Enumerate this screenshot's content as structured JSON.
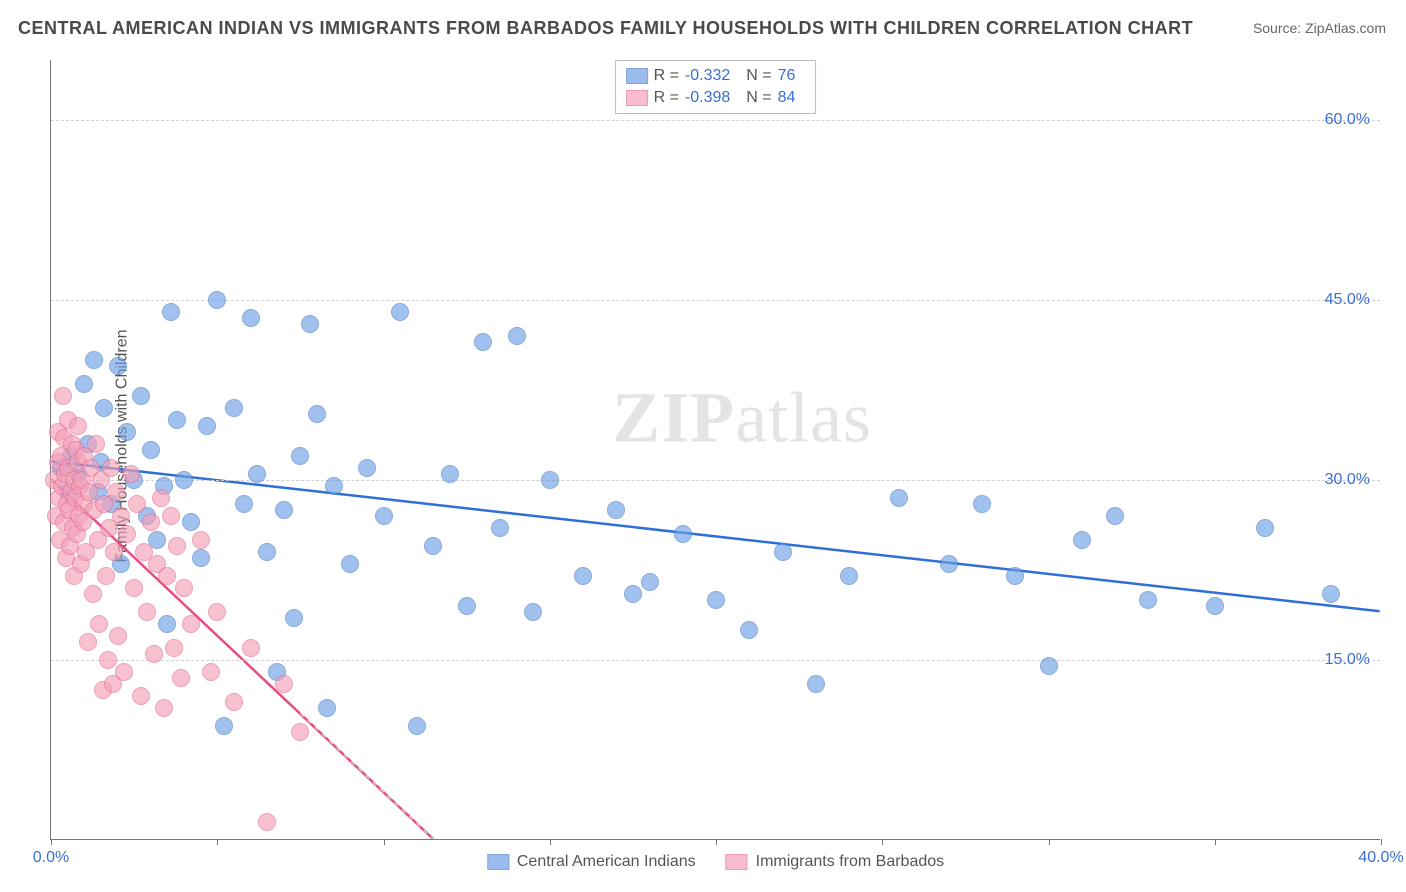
{
  "title": "CENTRAL AMERICAN INDIAN VS IMMIGRANTS FROM BARBADOS FAMILY HOUSEHOLDS WITH CHILDREN CORRELATION CHART",
  "source_label": "Source:",
  "source_site": "ZipAtlas.com",
  "ylabel": "Family Households with Children",
  "watermark": "ZIPatlas",
  "chart": {
    "type": "scatter",
    "xlim": [
      0,
      40
    ],
    "ylim": [
      0,
      65
    ],
    "x_ticks": [
      0,
      5,
      10,
      15,
      20,
      25,
      30,
      35,
      40
    ],
    "x_tick_labels": {
      "0": "0.0%",
      "40": "40.0%"
    },
    "y_gridlines": [
      15,
      30,
      45,
      60
    ],
    "y_tick_labels": {
      "15": "15.0%",
      "30": "30.0%",
      "45": "45.0%",
      "60": "60.0%"
    },
    "background_color": "#ffffff",
    "grid_color": "#d0d0d0",
    "axis_color": "#777777",
    "tick_label_color": "#3b6fd6",
    "point_radius": 9,
    "point_border_width": 1.5,
    "point_fill_opacity": 0.35,
    "trend_line_width": 2.5,
    "series": [
      {
        "name": "Central American Indians",
        "color": "#6fa0e6",
        "border_color": "#4d7fc9",
        "trend_color": "#2f6fd6",
        "R": "-0.332",
        "N": "76",
        "trend": {
          "x1": 0,
          "y1": 31.5,
          "x2": 40,
          "y2": 19.0
        },
        "points": [
          [
            0.3,
            31
          ],
          [
            0.5,
            29
          ],
          [
            0.6,
            32
          ],
          [
            0.8,
            30.5
          ],
          [
            1.0,
            38
          ],
          [
            1.1,
            33
          ],
          [
            1.3,
            40
          ],
          [
            1.4,
            29
          ],
          [
            1.5,
            31.5
          ],
          [
            1.6,
            36
          ],
          [
            1.8,
            28
          ],
          [
            2.0,
            39.5
          ],
          [
            2.1,
            23
          ],
          [
            2.3,
            34
          ],
          [
            2.5,
            30
          ],
          [
            2.7,
            37
          ],
          [
            2.9,
            27
          ],
          [
            3.0,
            32.5
          ],
          [
            3.2,
            25
          ],
          [
            3.4,
            29.5
          ],
          [
            3.5,
            18
          ],
          [
            3.6,
            44
          ],
          [
            3.8,
            35
          ],
          [
            4.0,
            30
          ],
          [
            4.2,
            26.5
          ],
          [
            4.5,
            23.5
          ],
          [
            4.7,
            34.5
          ],
          [
            5.0,
            45
          ],
          [
            5.2,
            9.5
          ],
          [
            5.5,
            36
          ],
          [
            5.8,
            28
          ],
          [
            6.0,
            43.5
          ],
          [
            6.2,
            30.5
          ],
          [
            6.5,
            24
          ],
          [
            6.8,
            14
          ],
          [
            7.0,
            27.5
          ],
          [
            7.3,
            18.5
          ],
          [
            7.5,
            32
          ],
          [
            7.8,
            43
          ],
          [
            8.0,
            35.5
          ],
          [
            8.3,
            11
          ],
          [
            8.5,
            29.5
          ],
          [
            9.0,
            23
          ],
          [
            9.5,
            31
          ],
          [
            10.0,
            27
          ],
          [
            10.5,
            44
          ],
          [
            11.0,
            9.5
          ],
          [
            11.5,
            24.5
          ],
          [
            12.0,
            30.5
          ],
          [
            12.5,
            19.5
          ],
          [
            13.0,
            41.5
          ],
          [
            13.5,
            26
          ],
          [
            14.0,
            42
          ],
          [
            14.5,
            19
          ],
          [
            15.0,
            30
          ],
          [
            16.0,
            22
          ],
          [
            17.0,
            27.5
          ],
          [
            17.5,
            20.5
          ],
          [
            18.0,
            21.5
          ],
          [
            19.0,
            25.5
          ],
          [
            20.0,
            20
          ],
          [
            21.0,
            17.5
          ],
          [
            22.0,
            24
          ],
          [
            23.0,
            13
          ],
          [
            24.0,
            22
          ],
          [
            25.5,
            28.5
          ],
          [
            27.0,
            23
          ],
          [
            28.0,
            28
          ],
          [
            29.0,
            22
          ],
          [
            30.0,
            14.5
          ],
          [
            31.0,
            25
          ],
          [
            32.0,
            27
          ],
          [
            33.0,
            20
          ],
          [
            35.0,
            19.5
          ],
          [
            36.5,
            26
          ],
          [
            38.5,
            20.5
          ]
        ]
      },
      {
        "name": "Immigrants from Barbados",
        "color": "#f4a0b8",
        "border_color": "#e66f96",
        "trend_color": "#e94b82",
        "R": "-0.398",
        "N": "84",
        "trend": {
          "x1": 0,
          "y1": 30.0,
          "x2": 11.5,
          "y2": 0
        },
        "trend_dashed_extension": {
          "x1": 11.5,
          "y1": 0,
          "x2": 11.5,
          "y2": 0
        },
        "points": [
          [
            0.1,
            30
          ],
          [
            0.15,
            27
          ],
          [
            0.2,
            31.5
          ],
          [
            0.22,
            34
          ],
          [
            0.25,
            28.5
          ],
          [
            0.28,
            25
          ],
          [
            0.3,
            32
          ],
          [
            0.32,
            29.5
          ],
          [
            0.35,
            37
          ],
          [
            0.38,
            26.5
          ],
          [
            0.4,
            33.5
          ],
          [
            0.42,
            30.5
          ],
          [
            0.45,
            23.5
          ],
          [
            0.48,
            28
          ],
          [
            0.5,
            35
          ],
          [
            0.52,
            31
          ],
          [
            0.55,
            27.5
          ],
          [
            0.58,
            24.5
          ],
          [
            0.6,
            29
          ],
          [
            0.62,
            33
          ],
          [
            0.65,
            26
          ],
          [
            0.68,
            30
          ],
          [
            0.7,
            22
          ],
          [
            0.72,
            28.5
          ],
          [
            0.75,
            32.5
          ],
          [
            0.78,
            25.5
          ],
          [
            0.8,
            31.5
          ],
          [
            0.82,
            34.5
          ],
          [
            0.85,
            27
          ],
          [
            0.88,
            29.5
          ],
          [
            0.9,
            23
          ],
          [
            0.92,
            30
          ],
          [
            0.95,
            26.5
          ],
          [
            0.98,
            28
          ],
          [
            1.0,
            32
          ],
          [
            1.05,
            24
          ],
          [
            1.1,
            16.5
          ],
          [
            1.15,
            29
          ],
          [
            1.2,
            31
          ],
          [
            1.25,
            20.5
          ],
          [
            1.3,
            27.5
          ],
          [
            1.35,
            33
          ],
          [
            1.4,
            25
          ],
          [
            1.45,
            18
          ],
          [
            1.5,
            30
          ],
          [
            1.55,
            12.5
          ],
          [
            1.6,
            28
          ],
          [
            1.65,
            22
          ],
          [
            1.7,
            15
          ],
          [
            1.75,
            26
          ],
          [
            1.8,
            31
          ],
          [
            1.85,
            13
          ],
          [
            1.9,
            24
          ],
          [
            1.95,
            29
          ],
          [
            2.0,
            17
          ],
          [
            2.1,
            27
          ],
          [
            2.2,
            14
          ],
          [
            2.3,
            25.5
          ],
          [
            2.4,
            30.5
          ],
          [
            2.5,
            21
          ],
          [
            2.6,
            28
          ],
          [
            2.7,
            12
          ],
          [
            2.8,
            24
          ],
          [
            2.9,
            19
          ],
          [
            3.0,
            26.5
          ],
          [
            3.1,
            15.5
          ],
          [
            3.2,
            23
          ],
          [
            3.3,
            28.5
          ],
          [
            3.4,
            11
          ],
          [
            3.5,
            22
          ],
          [
            3.6,
            27
          ],
          [
            3.7,
            16
          ],
          [
            3.8,
            24.5
          ],
          [
            3.9,
            13.5
          ],
          [
            4.0,
            21
          ],
          [
            4.2,
            18
          ],
          [
            4.5,
            25
          ],
          [
            4.8,
            14
          ],
          [
            5.0,
            19
          ],
          [
            5.5,
            11.5
          ],
          [
            6.0,
            16
          ],
          [
            6.5,
            1.5
          ],
          [
            7.0,
            13
          ],
          [
            7.5,
            9
          ]
        ]
      }
    ]
  },
  "legend_top": {
    "r_label": "R =",
    "n_label": "N ="
  },
  "legend_bottom": [
    {
      "label": "Central American Indians",
      "color": "#6fa0e6",
      "border": "#4d7fc9"
    },
    {
      "label": "Immigrants from Barbados",
      "color": "#f4a0b8",
      "border": "#e66f96"
    }
  ]
}
